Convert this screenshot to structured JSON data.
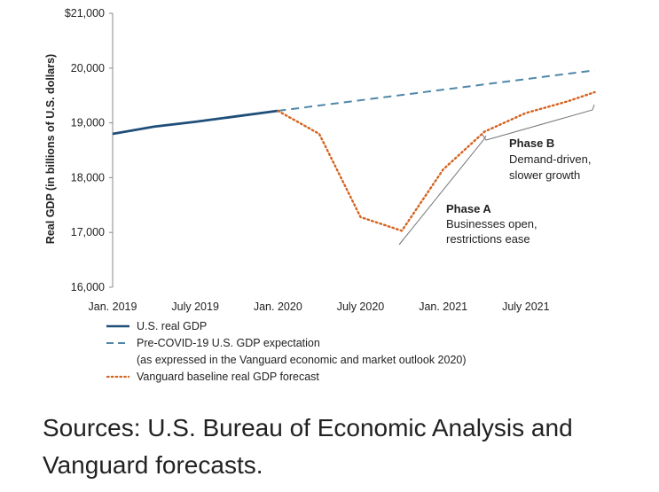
{
  "chart_data": {
    "type": "line",
    "ylabel": "Real GDP (in billions of U.S. dollars)",
    "ylim": [
      16000,
      21000
    ],
    "yticks": [
      {
        "value": 21000,
        "label": "$21,000"
      },
      {
        "value": 20000,
        "label": "20,000"
      },
      {
        "value": 19000,
        "label": "19,000"
      },
      {
        "value": 18000,
        "label": "18,000"
      },
      {
        "value": 17000,
        "label": "17,000"
      },
      {
        "value": 16000,
        "label": "16,000"
      }
    ],
    "xlim": [
      "2019-01",
      "2022-01"
    ],
    "xticks": [
      {
        "value": "2019-01",
        "label": "Jan. 2019"
      },
      {
        "value": "2019-07",
        "label": "July 2019"
      },
      {
        "value": "2020-01",
        "label": "Jan. 2020"
      },
      {
        "value": "2020-07",
        "label": "July 2020"
      },
      {
        "value": "2021-01",
        "label": "Jan. 2021"
      },
      {
        "value": "2021-07",
        "label": "July 2021"
      }
    ],
    "series": [
      {
        "name": "U.S. real GDP",
        "color": "#1f4e79",
        "style": "solid",
        "x": [
          "2019-01",
          "2019-04",
          "2019-07",
          "2019-10",
          "2020-01"
        ],
        "y": [
          18800,
          18930,
          19020,
          19120,
          19220
        ]
      },
      {
        "name": "Pre-COVID-19 U.S. GDP expectation",
        "note": "(as expressed in the Vanguard economic and market outlook 2020)",
        "color": "#4f87a8",
        "style": "dashed",
        "x": [
          "2020-01",
          "2021-12"
        ],
        "y": [
          19220,
          19960
        ]
      },
      {
        "name": "Vanguard baseline real GDP forecast",
        "color": "#d4631f",
        "style": "dotted",
        "x": [
          "2020-01",
          "2020-04",
          "2020-07",
          "2020-10",
          "2021-01",
          "2021-04",
          "2021-07",
          "2021-10",
          "2021-12"
        ],
        "y": [
          19220,
          18800,
          17280,
          17030,
          18150,
          18840,
          19180,
          19390,
          19560
        ]
      }
    ],
    "annotations": [
      {
        "title": "Phase A",
        "lines": [
          "Businesses open,",
          "restrictions ease"
        ]
      },
      {
        "title": "Phase B",
        "lines": [
          "Demand-driven,",
          "slower growth"
        ]
      }
    ]
  },
  "source_text": "Sources: U.S. Bureau of Economic Analysis and Vanguard forecasts."
}
